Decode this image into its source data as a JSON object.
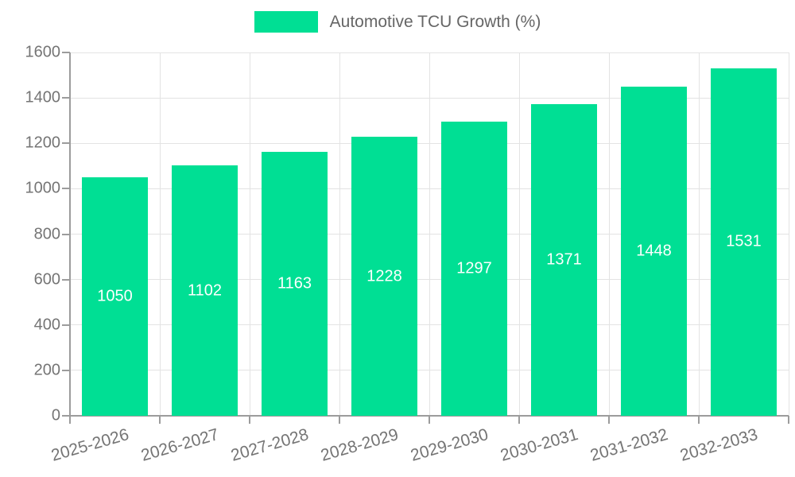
{
  "chart_data": {
    "type": "bar",
    "title": "",
    "legend": "Automotive TCU Growth (%)",
    "legend_position": "top-center",
    "categories": [
      "2025-2026",
      "2026-2027",
      "2027-2028",
      "2028-2029",
      "2029-2030",
      "2030-2031",
      "2031-2032",
      "2032-2033"
    ],
    "series": [
      {
        "name": "Automotive TCU Growth (%)",
        "values": [
          1050,
          1102,
          1163,
          1228,
          1297,
          1371,
          1448,
          1531
        ]
      }
    ],
    "value_labels": [
      "1050",
      "1102",
      "1163",
      "1228",
      "1297",
      "1371",
      "1448",
      "1531"
    ],
    "xlabel": "",
    "ylabel": "",
    "ylim": [
      0,
      1600
    ],
    "yticks": [
      0,
      200,
      400,
      600,
      800,
      1000,
      1200,
      1400,
      1600
    ],
    "grid": "on",
    "colors": {
      "bar": "#00df94",
      "gridline": "#e3e3e3",
      "axis": "#9c9c9c",
      "tick_text": "#757575",
      "legend_text": "#666666",
      "value_text": "#ffffff"
    }
  }
}
